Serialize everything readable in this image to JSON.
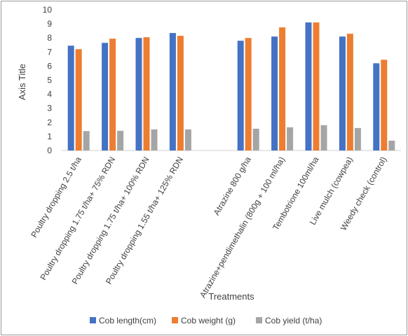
{
  "chart_data": {
    "type": "bar",
    "title": "",
    "xlabel": "Treatments",
    "ylabel": "Axis Title",
    "ylim": [
      0,
      10
    ],
    "yticks": [
      0,
      1,
      2,
      3,
      4,
      5,
      6,
      7,
      8,
      9,
      10
    ],
    "grid": false,
    "legend_position": "bottom",
    "categories": [
      "Poultry dropping 2.5 t/ha",
      "Poultry dropping 1.75 t/ha+ 75% RDN",
      "Poultry dropping 1.75 t/ha+ 100% RDN",
      "Poultry dropping 1.55 t/ha+ 125% RDN",
      "",
      "Atrazine 800 g/ha",
      "Atrazine+pendimethalin (800g + 100 ml/ha)",
      "Tembotrione 100ml/ha",
      "Live mulch (cowpea)",
      "Weedy check (control)"
    ],
    "series": [
      {
        "name": "Cob  length(cm)",
        "color": "#4472C4",
        "values": [
          7.45,
          7.65,
          8.0,
          8.35,
          null,
          7.8,
          8.1,
          9.1,
          8.1,
          6.2
        ]
      },
      {
        "name": "Cob  weight (g)",
        "color": "#ED7D31",
        "values": [
          7.2,
          7.95,
          8.05,
          8.15,
          null,
          8.0,
          8.75,
          9.1,
          8.3,
          6.45
        ]
      },
      {
        "name": "Cob yield (t/ha)",
        "color": "#A5A5A5",
        "values": [
          1.38,
          1.4,
          1.5,
          1.5,
          null,
          1.55,
          1.65,
          1.8,
          1.6,
          0.7
        ]
      }
    ]
  }
}
